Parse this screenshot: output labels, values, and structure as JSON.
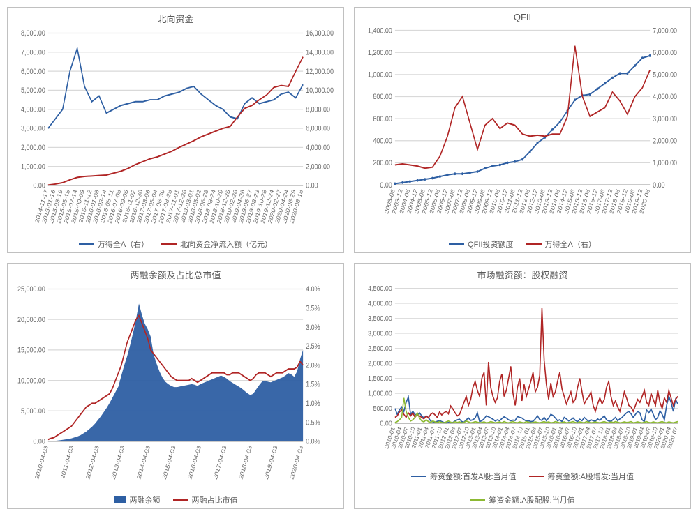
{
  "colors": {
    "blue": "#2e5fa3",
    "red": "#b02525",
    "green": "#8cb933",
    "grid": "#d9d9d9",
    "text": "#6a6a6a",
    "border": "#c0c0c0",
    "areaBlue": "#2e5fa3"
  },
  "fontsize": {
    "title": 13,
    "legend": 11,
    "tick": 9,
    "tickx": 8
  },
  "charts": {
    "tl": {
      "title": "北向资金",
      "legend": [
        {
          "label": "万得全A（右）",
          "color": "#2e5fa3",
          "type": "line"
        },
        {
          "label": "北向资金净流入额（亿元）",
          "color": "#b02525",
          "type": "line"
        }
      ],
      "yLeft": {
        "min": 0,
        "max": 8000,
        "step": 1000,
        "fmt": "comma2"
      },
      "yRight": {
        "min": 0,
        "max": 16000,
        "step": 2000,
        "fmt": "comma2"
      },
      "xLabels": [
        "2014-11-17",
        "2015-01-16",
        "2015-03-19",
        "2015-05-15",
        "2015-07-14",
        "2015-09-09",
        "2015-11-12",
        "2016-01-08",
        "2016-03-14",
        "2016-05-11",
        "2016-07-08",
        "2016-09-05",
        "2016-11-02",
        "2016-12-30",
        "2017-03-06",
        "2017-05-04",
        "2017-06-30",
        "2017-08-28",
        "2017-11-01",
        "2017-12-28",
        "2018-03-01",
        "2018-05-02",
        "2018-06-28",
        "2018-08-24",
        "2018-10-29",
        "2018-12-25",
        "2019-02-28",
        "2019-04-26",
        "2019-06-27",
        "2019-08-23",
        "2019-10-28",
        "2019-12-24",
        "2020-02-27",
        "2020-04-24",
        "2020-06-29",
        "2020-08-18"
      ],
      "series": {
        "wandeA": [
          3000,
          3500,
          4000,
          6000,
          7200,
          5200,
          4400,
          4700,
          3800,
          4000,
          4200,
          4300,
          4400,
          4400,
          4500,
          4500,
          4700,
          4800,
          4900,
          5100,
          5200,
          4800,
          4500,
          4200,
          4000,
          3600,
          3500,
          4300,
          4600,
          4300,
          4400,
          4500,
          4800,
          4900,
          4600,
          5300
        ],
        "northFlow": [
          50,
          150,
          300,
          600,
          850,
          950,
          1000,
          1050,
          1100,
          1300,
          1500,
          1800,
          2200,
          2500,
          2800,
          3000,
          3300,
          3600,
          4000,
          4350,
          4700,
          5100,
          5400,
          5700,
          6000,
          6200,
          7200,
          8100,
          8400,
          9000,
          9500,
          10300,
          10500,
          10400,
          12000,
          13500
        ]
      }
    },
    "tr": {
      "title": "QFII",
      "legend": [
        {
          "label": "QFII投资额度",
          "color": "#2e5fa3",
          "type": "line"
        },
        {
          "label": "万得全A（右）",
          "color": "#b02525",
          "type": "line"
        }
      ],
      "yLeft": {
        "min": 0,
        "max": 1400,
        "step": 200,
        "fmt": "comma2"
      },
      "yRight": {
        "min": 0,
        "max": 7000,
        "step": 1000,
        "fmt": "comma2"
      },
      "xLabels": [
        "2003-06",
        "2003-12",
        "2004-06",
        "2004-12",
        "2005-06",
        "2005-12",
        "2006-06",
        "2006-12",
        "2007-06",
        "2007-12",
        "2008-06",
        "2008-12",
        "2009-06",
        "2009-12",
        "2010-06",
        "2010-12",
        "2011-06",
        "2011-12",
        "2012-06",
        "2012-12",
        "2013-06",
        "2013-12",
        "2014-06",
        "2014-12",
        "2015-06",
        "2015-12",
        "2016-06",
        "2016-12",
        "2017-06",
        "2017-12",
        "2018-06",
        "2018-12",
        "2019-06",
        "2019-12",
        "2020-06"
      ],
      "series": {
        "qfii": [
          10,
          20,
          30,
          40,
          50,
          60,
          75,
          90,
          100,
          100,
          110,
          120,
          150,
          170,
          180,
          200,
          210,
          230,
          300,
          380,
          430,
          500,
          570,
          670,
          770,
          810,
          820,
          870,
          920,
          970,
          1010,
          1010,
          1080,
          1150,
          1170
        ],
        "wandeA": [
          900,
          950,
          900,
          850,
          750,
          800,
          1300,
          2200,
          3500,
          4000,
          2800,
          1600,
          2700,
          3000,
          2550,
          2800,
          2700,
          2300,
          2200,
          2250,
          2200,
          2300,
          2300,
          3100,
          6300,
          4000,
          3100,
          3300,
          3500,
          4200,
          3800,
          3200,
          4000,
          4400,
          5200
        ]
      }
    },
    "bl": {
      "title": "两融余额及占比总市值",
      "legend": [
        {
          "label": "两融余额",
          "color": "#2e5fa3",
          "type": "area"
        },
        {
          "label": "两融占比市值",
          "color": "#b02525",
          "type": "line"
        }
      ],
      "yLeft": {
        "min": 0,
        "max": 25000,
        "step": 5000,
        "fmt": "comma2"
      },
      "yRight": {
        "min": 0,
        "max": 0.04,
        "step": 0.005,
        "fmt": "pct1"
      },
      "xLabels": [
        "2010-04-03",
        "2011-04-03",
        "2012-04-03",
        "2013-04-03",
        "2014-04-03",
        "2015-04-03",
        "2016-04-03",
        "2017-04-03",
        "2018-04-03",
        "2019-04-03",
        "2020-04-03"
      ],
      "nPoints": 88,
      "series": {
        "balance": [
          40,
          60,
          80,
          120,
          180,
          250,
          320,
          400,
          500,
          650,
          800,
          1000,
          1300,
          1600,
          2000,
          2400,
          2900,
          3500,
          4100,
          4800,
          5500,
          6300,
          7200,
          8100,
          9000,
          10800,
          12500,
          14000,
          15800,
          17800,
          20000,
          22600,
          20800,
          19300,
          18400,
          17200,
          14300,
          12800,
          11500,
          10500,
          9800,
          9400,
          9100,
          8900,
          8900,
          9000,
          9100,
          9200,
          9300,
          9400,
          9300,
          9100,
          9400,
          9600,
          9800,
          10000,
          10200,
          10400,
          10600,
          10800,
          10600,
          10300,
          9900,
          9600,
          9300,
          9000,
          8700,
          8300,
          7900,
          7600,
          7800,
          8500,
          9200,
          9800,
          10000,
          9800,
          9700,
          9900,
          10100,
          10300,
          10500,
          10800,
          11200,
          11000,
          10600,
          11500,
          13500,
          15000
        ],
        "ratio": [
          0.0005,
          0.0008,
          0.001,
          0.0015,
          0.002,
          0.0025,
          0.003,
          0.0035,
          0.004,
          0.005,
          0.006,
          0.007,
          0.008,
          0.009,
          0.0095,
          0.01,
          0.01,
          0.0105,
          0.011,
          0.0115,
          0.012,
          0.0125,
          0.014,
          0.016,
          0.018,
          0.02,
          0.023,
          0.026,
          0.028,
          0.03,
          0.032,
          0.033,
          0.031,
          0.029,
          0.027,
          0.024,
          0.023,
          0.022,
          0.021,
          0.02,
          0.019,
          0.018,
          0.017,
          0.0165,
          0.016,
          0.016,
          0.016,
          0.016,
          0.016,
          0.0165,
          0.016,
          0.0155,
          0.016,
          0.0165,
          0.017,
          0.0175,
          0.018,
          0.018,
          0.018,
          0.018,
          0.018,
          0.0175,
          0.0175,
          0.018,
          0.018,
          0.018,
          0.0175,
          0.017,
          0.0165,
          0.016,
          0.0165,
          0.0175,
          0.018,
          0.018,
          0.018,
          0.0175,
          0.017,
          0.0175,
          0.018,
          0.018,
          0.018,
          0.0185,
          0.019,
          0.019,
          0.019,
          0.0195,
          0.021,
          0.02
        ]
      }
    },
    "br": {
      "title": "市场融资额：股权融资",
      "legend": [
        {
          "label": "筹资金额:首发A股:当月值",
          "color": "#2e5fa3",
          "type": "line"
        },
        {
          "label": "筹资金额:A股增发:当月值",
          "color": "#b02525",
          "type": "line"
        },
        {
          "label": "筹资金额:A股配股:当月值",
          "color": "#8cb933",
          "type": "line"
        }
      ],
      "yLeft": {
        "min": 0,
        "max": 4500,
        "step": 500,
        "fmt": "comma2"
      },
      "yRight": null,
      "xLabels": [
        "2010-01",
        "2010-04",
        "2010-07",
        "2010-10",
        "2011-01",
        "2011-04",
        "2011-07",
        "2011-10",
        "2012-01",
        "2012-04",
        "2012-07",
        "2012-10",
        "2013-01",
        "2013-04",
        "2013-07",
        "2013-10",
        "2014-01",
        "2014-04",
        "2014-07",
        "2014-10",
        "2015-01",
        "2015-04",
        "2015-07",
        "2015-10",
        "2016-01",
        "2016-04",
        "2016-07",
        "2016-10",
        "2017-01",
        "2017-04",
        "2017-07",
        "2017-10",
        "2018-01",
        "2018-04",
        "2018-07",
        "2018-10",
        "2019-01",
        "2019-04",
        "2019-07",
        "2019-10",
        "2020-01",
        "2020-04",
        "2020-07"
      ],
      "nPoints": 128,
      "series": {
        "ipo": [
          500,
          300,
          450,
          550,
          400,
          700,
          880,
          300,
          400,
          300,
          280,
          350,
          250,
          180,
          250,
          200,
          80,
          50,
          40,
          70,
          100,
          60,
          30,
          20,
          30,
          20,
          30,
          80,
          120,
          140,
          60,
          40,
          120,
          180,
          100,
          120,
          180,
          350,
          60,
          90,
          150,
          250,
          220,
          180,
          140,
          80,
          120,
          90,
          160,
          220,
          180,
          120,
          90,
          110,
          100,
          230,
          200,
          180,
          120,
          80,
          90,
          60,
          70,
          150,
          250,
          130,
          100,
          200,
          90,
          180,
          300,
          260,
          180,
          90,
          120,
          60,
          200,
          150,
          80,
          120,
          180,
          100,
          60,
          140,
          90,
          200,
          130,
          60,
          120,
          90,
          70,
          150,
          100,
          180,
          250,
          120,
          80,
          70,
          130,
          200,
          90,
          150,
          200,
          280,
          350,
          400,
          320,
          200,
          300,
          400,
          350,
          120,
          60,
          450,
          350,
          480,
          300,
          120,
          200,
          420,
          300,
          120,
          600,
          900,
          700,
          400,
          800,
          650
        ],
        "spo": [
          200,
          250,
          380,
          450,
          300,
          200,
          350,
          250,
          350,
          200,
          300,
          250,
          200,
          150,
          250,
          180,
          300,
          350,
          280,
          200,
          380,
          280,
          350,
          400,
          320,
          580,
          480,
          350,
          250,
          300,
          500,
          700,
          900,
          600,
          800,
          1200,
          1400,
          1100,
          900,
          1500,
          1700,
          600,
          2050,
          1200,
          900,
          700,
          850,
          1400,
          1650,
          900,
          1100,
          1500,
          1900,
          1000,
          600,
          1200,
          1500,
          750,
          1300,
          900,
          1150,
          1400,
          1700,
          1050,
          1200,
          1600,
          3850,
          2100,
          1300,
          800,
          1350,
          900,
          1050,
          1400,
          1700,
          1150,
          900,
          650,
          850,
          1050,
          700,
          800,
          1200,
          1500,
          1050,
          650,
          800,
          880,
          1050,
          600,
          400,
          650,
          850,
          650,
          800,
          1200,
          1400,
          900,
          600,
          750,
          550,
          400,
          700,
          1050,
          850,
          600,
          550,
          400,
          600,
          800,
          700,
          900,
          1100,
          700,
          600,
          1000,
          800,
          600,
          1100,
          700,
          500,
          850,
          700,
          1100,
          850,
          600,
          800,
          900
        ],
        "rights": [
          30,
          60,
          120,
          200,
          850,
          400,
          200,
          80,
          120,
          200,
          350,
          180,
          80,
          50,
          120,
          60,
          30,
          80,
          50,
          30,
          60,
          30,
          20,
          50,
          80,
          40,
          20,
          60,
          30,
          50,
          20,
          30,
          80,
          50,
          20,
          30,
          60,
          40,
          20,
          30,
          50,
          20,
          30,
          60,
          40,
          20,
          30,
          50,
          20,
          60,
          30,
          20,
          40,
          60,
          30,
          20,
          50,
          30,
          20,
          60,
          40,
          20,
          30,
          50,
          30,
          20,
          40,
          60,
          30,
          50,
          20,
          30,
          60,
          40,
          20,
          30,
          50,
          20,
          30,
          40,
          60,
          30,
          20,
          50,
          30,
          20,
          60,
          40,
          20,
          30,
          50,
          30,
          20,
          40,
          60,
          30,
          20,
          50,
          30,
          60,
          40,
          20,
          30,
          50,
          30,
          40,
          60,
          20,
          30,
          50,
          30,
          20,
          40,
          60,
          30,
          20,
          50,
          30,
          20,
          40,
          60,
          30,
          20,
          50,
          30,
          20,
          40,
          60
        ]
      }
    }
  }
}
